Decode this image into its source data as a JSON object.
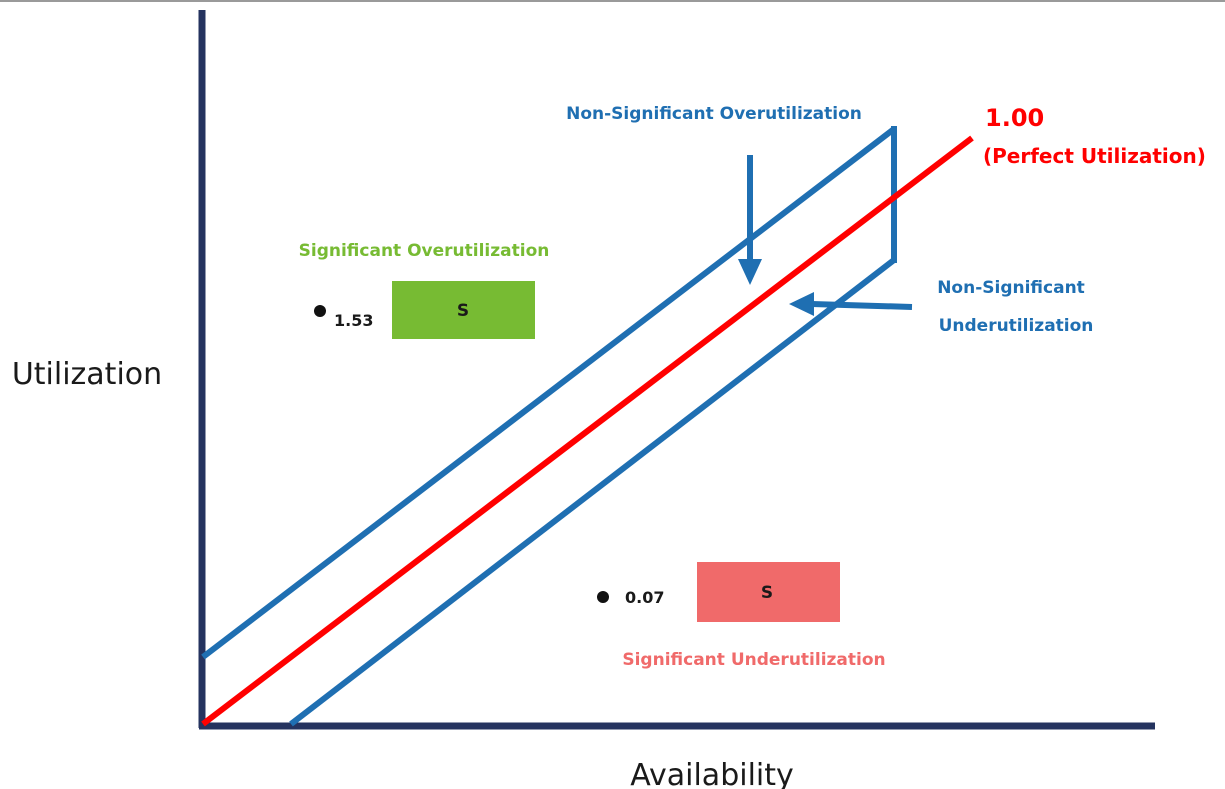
{
  "axes": {
    "y_label": "Utilization",
    "x_label": "Availability"
  },
  "reference_line": {
    "value": "1.00",
    "caption": "(Perfect Utilization)"
  },
  "regions": {
    "non_significant_over": "Non-Significant Overutilization",
    "non_significant_under_line1": "Non-Significant",
    "non_significant_under_line2": "Underutilization",
    "significant_over": "Significant Overutilization",
    "significant_under": "Significant Underutilization"
  },
  "markers": {
    "over": {
      "value": "1.53",
      "badge": "S"
    },
    "under": {
      "value": "0.07",
      "badge": "S"
    }
  },
  "colors": {
    "axis": "#25335f",
    "band": "#1f6fb2",
    "reference": "#ff0000",
    "over_box": "#77bb33",
    "under_box": "#f06a6a",
    "over_text": "#77bb33",
    "under_text": "#f06a6a",
    "dark_text": "#1a1a1a"
  }
}
